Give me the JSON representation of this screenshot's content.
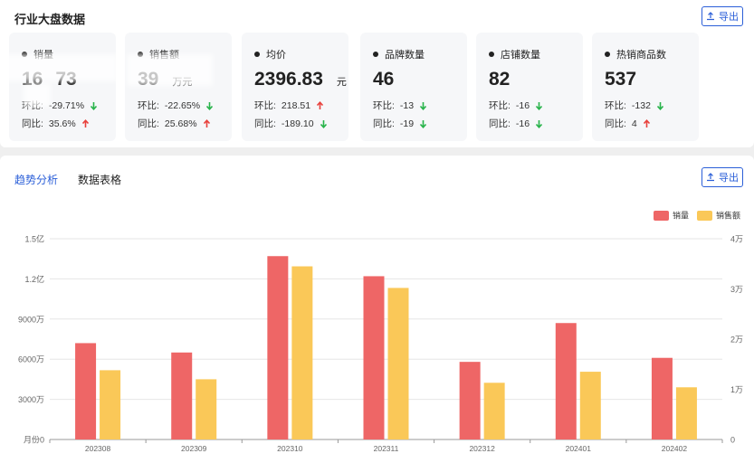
{
  "overview": {
    "title": "行业大盘数据",
    "export_label": "导出",
    "cards": [
      {
        "label": "销量",
        "value": "16",
        "value_tail": "73",
        "unit": "",
        "hb_label": "环比:",
        "hb_value": "-29.71%",
        "hb_dir": "down",
        "tb_label": "同比:",
        "tb_value": "35.6%",
        "tb_dir": "up"
      },
      {
        "label": "销售额",
        "value": "39",
        "value_tail": "",
        "unit": "万元",
        "hb_label": "环比:",
        "hb_value": "-22.65%",
        "hb_dir": "down",
        "tb_label": "同比:",
        "tb_value": "25.68%",
        "tb_dir": "up"
      },
      {
        "label": "均价",
        "value": "2396.83",
        "value_tail": "",
        "unit": "元",
        "hb_label": "环比:",
        "hb_value": "218.51",
        "hb_dir": "up",
        "tb_label": "同比:",
        "tb_value": "-189.10",
        "tb_dir": "down"
      },
      {
        "label": "品牌数量",
        "value": "46",
        "value_tail": "",
        "unit": "",
        "hb_label": "环比:",
        "hb_value": "-13",
        "hb_dir": "down",
        "tb_label": "同比:",
        "tb_value": "-19",
        "tb_dir": "down"
      },
      {
        "label": "店铺数量",
        "value": "82",
        "value_tail": "",
        "unit": "",
        "hb_label": "环比:",
        "hb_value": "-16",
        "hb_dir": "down",
        "tb_label": "同比:",
        "tb_value": "-16",
        "tb_dir": "down"
      },
      {
        "label": "热销商品数",
        "value": "537",
        "value_tail": "",
        "unit": "",
        "hb_label": "环比:",
        "hb_value": "-132",
        "hb_dir": "down",
        "tb_label": "同比:",
        "tb_value": "4",
        "tb_dir": "up"
      }
    ]
  },
  "trend": {
    "tabs": [
      {
        "label": "趋势分析",
        "active": true
      },
      {
        "label": "数据表格",
        "active": false
      }
    ],
    "export_label": "导出"
  },
  "colors": {
    "accent": "#2b5fd8",
    "up": "#e8413c",
    "down": "#27b34a",
    "series1": "#ee6666",
    "series2": "#fac858"
  },
  "chart_data": {
    "type": "bar",
    "categories": [
      "202308",
      "202309",
      "202310",
      "202311",
      "202312",
      "202401",
      "202402"
    ],
    "series": [
      {
        "name": "销量",
        "axis": "left",
        "values": [
          72000000,
          65000000,
          137000000,
          122000000,
          58000000,
          87000000,
          61000000
        ]
      },
      {
        "name": "销售额",
        "axis": "right",
        "values": [
          13800,
          12000,
          34500,
          30200,
          11300,
          13500,
          10400
        ]
      }
    ],
    "left_axis": {
      "name": "月份",
      "ticks": [
        "0",
        "3000万",
        "6000万",
        "9000万",
        "1.2亿",
        "1.5亿"
      ],
      "min": 0,
      "max": 150000000
    },
    "right_axis": {
      "ticks": [
        "0",
        "1万",
        "2万",
        "3万",
        "4万"
      ],
      "min": 0,
      "max": 40000
    },
    "legend_position": "top-right",
    "grid": true
  }
}
